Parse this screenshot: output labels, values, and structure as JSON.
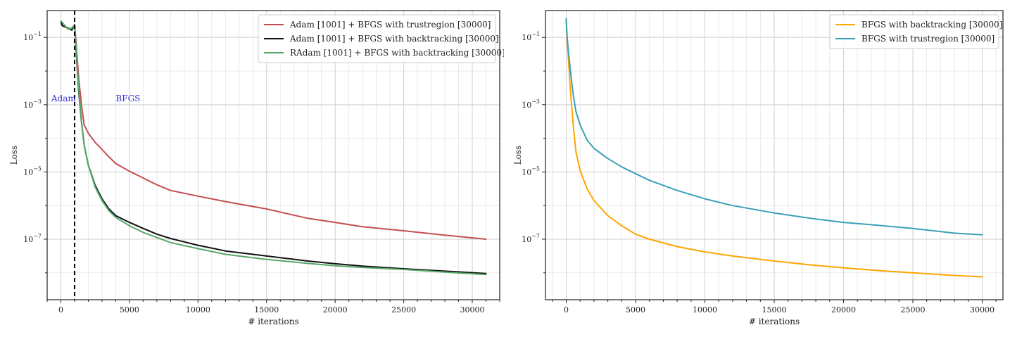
{
  "chart_data": [
    {
      "type": "line",
      "title": "",
      "xlabel": "# iterations",
      "ylabel": "Loss",
      "yscale": "log",
      "xlim": [
        -1000,
        32000
      ],
      "ylim_log10": [
        -8.8,
        -0.2
      ],
      "xticks": [
        0,
        5000,
        10000,
        15000,
        20000,
        25000,
        30000
      ],
      "yticks": [
        {
          "value_log10": -1,
          "base": "10",
          "exp": "−1"
        },
        {
          "value_log10": -3,
          "base": "10",
          "exp": "−3"
        },
        {
          "value_log10": -5,
          "base": "10",
          "exp": "−5"
        },
        {
          "value_log10": -7,
          "base": "10",
          "exp": "−7"
        }
      ],
      "legend_position": "top-right",
      "vline": {
        "x": 1001,
        "style": "dashed",
        "color": "#000000"
      },
      "annotations": [
        {
          "text": "Adam",
          "x": -700,
          "y_log10": -2.9
        },
        {
          "text": "BFGS",
          "x": 4000,
          "y_log10": -2.9
        }
      ],
      "series": [
        {
          "name": "Adam [1001] + BFGS with trustregion [30000]",
          "color": "#c44e52",
          "x": [
            0,
            100,
            400,
            800,
            1001,
            1100,
            1300,
            1500,
            1700,
            2000,
            2500,
            3000,
            3500,
            4000,
            5000,
            6000,
            7000,
            8000,
            10000,
            12000,
            15000,
            18000,
            20000,
            22000,
            25000,
            28000,
            31000
          ],
          "y_log10": [
            -0.52,
            -0.65,
            -0.7,
            -0.78,
            -0.62,
            -1.1,
            -2.2,
            -3.0,
            -3.6,
            -3.85,
            -4.12,
            -4.33,
            -4.55,
            -4.75,
            -4.98,
            -5.18,
            -5.38,
            -5.55,
            -5.72,
            -5.88,
            -6.1,
            -6.38,
            -6.5,
            -6.63,
            -6.75,
            -6.88,
            -7.0
          ]
        },
        {
          "name": "Adam [1001] + BFGS with backtracking [30000]",
          "color": "#111111",
          "x": [
            0,
            100,
            400,
            800,
            1001,
            1100,
            1300,
            1500,
            1700,
            2000,
            2500,
            3000,
            3500,
            4000,
            5000,
            6000,
            7000,
            8000,
            10000,
            12000,
            15000,
            18000,
            20000,
            22000,
            25000,
            28000,
            31000
          ],
          "y_log10": [
            -0.52,
            -0.65,
            -0.7,
            -0.78,
            -0.62,
            -1.3,
            -2.6,
            -3.5,
            -4.2,
            -4.8,
            -5.4,
            -5.8,
            -6.1,
            -6.3,
            -6.5,
            -6.68,
            -6.85,
            -6.98,
            -7.18,
            -7.35,
            -7.5,
            -7.65,
            -7.73,
            -7.8,
            -7.88,
            -7.95,
            -8.02
          ]
        },
        {
          "name": "RAdam [1001] + BFGS with backtracking [30000]",
          "color": "#55a868",
          "x": [
            0,
            100,
            300,
            500,
            800,
            1001,
            1100,
            1300,
            1500,
            1700,
            2000,
            2500,
            3000,
            3500,
            4000,
            5000,
            6000,
            7000,
            8000,
            10000,
            12000,
            15000,
            18000,
            20000,
            22000,
            25000,
            28000,
            31000
          ],
          "y_log10": [
            -0.52,
            -0.55,
            -0.65,
            -0.75,
            -0.72,
            -0.62,
            -1.2,
            -2.5,
            -3.5,
            -4.2,
            -4.8,
            -5.45,
            -5.85,
            -6.15,
            -6.35,
            -6.6,
            -6.8,
            -6.95,
            -7.1,
            -7.28,
            -7.45,
            -7.6,
            -7.72,
            -7.79,
            -7.84,
            -7.9,
            -7.98,
            -8.05
          ]
        }
      ]
    },
    {
      "type": "line",
      "title": "",
      "xlabel": "# iterations",
      "ylabel": "Loss",
      "yscale": "log",
      "xlim": [
        -1500,
        31500
      ],
      "ylim_log10": [
        -8.8,
        -0.2
      ],
      "xticks": [
        0,
        5000,
        10000,
        15000,
        20000,
        25000,
        30000
      ],
      "yticks": [
        {
          "value_log10": -1,
          "base": "10",
          "exp": "−1"
        },
        {
          "value_log10": -3,
          "base": "10",
          "exp": "−3"
        },
        {
          "value_log10": -5,
          "base": "10",
          "exp": "−5"
        },
        {
          "value_log10": -7,
          "base": "10",
          "exp": "−7"
        }
      ],
      "legend_position": "top-right",
      "series": [
        {
          "name": "BFGS with backtracking [30000]",
          "color": "#ffa500",
          "x": [
            0,
            50,
            150,
            300,
            500,
            700,
            1000,
            1500,
            2000,
            3000,
            4000,
            5000,
            6000,
            8000,
            10000,
            12000,
            15000,
            18000,
            20000,
            22000,
            25000,
            28000,
            30000
          ],
          "y_log10": [
            -0.45,
            -1.0,
            -1.6,
            -2.6,
            -3.6,
            -4.4,
            -4.95,
            -5.5,
            -5.85,
            -6.3,
            -6.6,
            -6.85,
            -7.0,
            -7.22,
            -7.38,
            -7.5,
            -7.65,
            -7.78,
            -7.85,
            -7.92,
            -8.0,
            -8.08,
            -8.12
          ]
        },
        {
          "name": "BFGS with trustregion [30000]",
          "color": "#3aa0b8",
          "x": [
            0,
            50,
            150,
            300,
            500,
            700,
            1000,
            1500,
            2000,
            3000,
            4000,
            5000,
            6000,
            8000,
            10000,
            12000,
            15000,
            18000,
            20000,
            22000,
            25000,
            28000,
            30000
          ],
          "y_log10": [
            -0.45,
            -0.9,
            -1.4,
            -2.0,
            -2.7,
            -3.2,
            -3.6,
            -4.05,
            -4.3,
            -4.6,
            -4.85,
            -5.05,
            -5.25,
            -5.55,
            -5.8,
            -6.0,
            -6.22,
            -6.4,
            -6.5,
            -6.57,
            -6.68,
            -6.82,
            -6.87
          ]
        }
      ]
    }
  ]
}
